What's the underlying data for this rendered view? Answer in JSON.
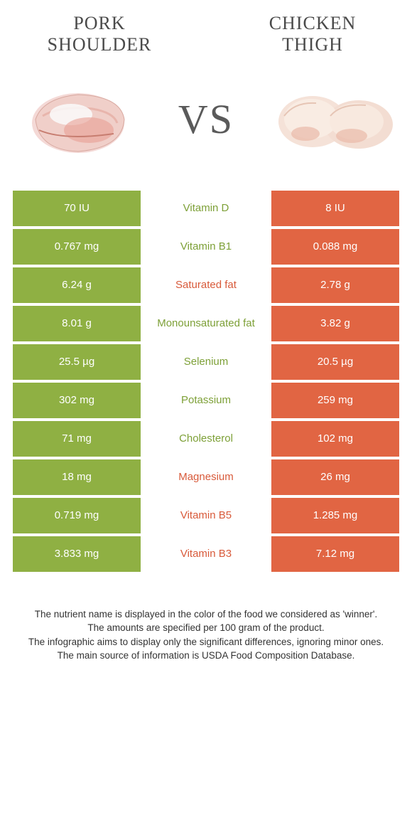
{
  "colors": {
    "left": "#8fb043",
    "right": "#e16543",
    "left_text": "#7da037",
    "right_text": "#d85a3a"
  },
  "food_left": {
    "line1": "Pork",
    "line2": "shoulder"
  },
  "food_right": {
    "line1": "Chicken",
    "line2": "thigh"
  },
  "vs": "VS",
  "rows": [
    {
      "left": "70 IU",
      "name": "Vitamin D",
      "right": "8 IU",
      "winner": "left"
    },
    {
      "left": "0.767 mg",
      "name": "Vitamin B1",
      "right": "0.088 mg",
      "winner": "left"
    },
    {
      "left": "6.24 g",
      "name": "Saturated fat",
      "right": "2.78 g",
      "winner": "right"
    },
    {
      "left": "8.01 g",
      "name": "Monounsaturated fat",
      "right": "3.82 g",
      "winner": "left"
    },
    {
      "left": "25.5 µg",
      "name": "Selenium",
      "right": "20.5 µg",
      "winner": "left"
    },
    {
      "left": "302 mg",
      "name": "Potassium",
      "right": "259 mg",
      "winner": "left"
    },
    {
      "left": "71 mg",
      "name": "Cholesterol",
      "right": "102 mg",
      "winner": "left"
    },
    {
      "left": "18 mg",
      "name": "Magnesium",
      "right": "26 mg",
      "winner": "right"
    },
    {
      "left": "0.719 mg",
      "name": "Vitamin B5",
      "right": "1.285 mg",
      "winner": "right"
    },
    {
      "left": "3.833 mg",
      "name": "Vitamin B3",
      "right": "7.12 mg",
      "winner": "right"
    }
  ],
  "footer": {
    "l1": "The nutrient name is displayed in the color of the food we considered as 'winner'.",
    "l2": "The amounts are specified per 100 gram of the product.",
    "l3": "The infographic aims to display only the significant differences, ignoring minor ones.",
    "l4": "The main source of information is USDA Food Composition Database."
  }
}
